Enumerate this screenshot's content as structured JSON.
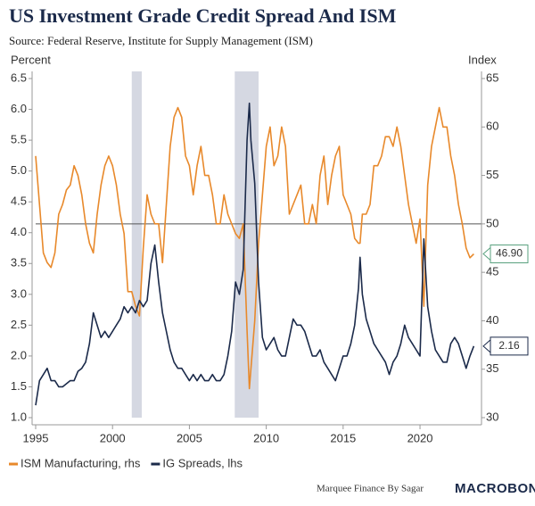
{
  "chart_data": {
    "type": "line",
    "title": "US Investment Grade Credit Spread And ISM",
    "subtitle": "Source: Federal Reserve, Institute for Supply Management (ISM)",
    "ylabel": "Percent",
    "y2label": "Index",
    "footer": "Marquee Finance By Sagar",
    "brand": "MACROBOND",
    "x": [
      1995,
      1995.25,
      1995.5,
      1995.75,
      1996,
      1996.25,
      1996.5,
      1996.75,
      1997,
      1997.25,
      1997.5,
      1997.75,
      1998,
      1998.25,
      1998.5,
      1998.75,
      1999,
      1999.25,
      1999.5,
      1999.75,
      2000,
      2000.25,
      2000.5,
      2000.75,
      2001,
      2001.25,
      2001.5,
      2001.75,
      2002,
      2002.25,
      2002.5,
      2002.75,
      2003,
      2003.25,
      2003.5,
      2003.75,
      2004,
      2004.25,
      2004.5,
      2004.75,
      2005,
      2005.25,
      2005.5,
      2005.75,
      2006,
      2006.25,
      2006.5,
      2006.75,
      2007,
      2007.25,
      2007.5,
      2007.75,
      2008,
      2008.25,
      2008.5,
      2008.75,
      2008.9,
      2009,
      2009.25,
      2009.5,
      2009.75,
      2010,
      2010.25,
      2010.5,
      2010.75,
      2011,
      2011.25,
      2011.5,
      2011.75,
      2012,
      2012.25,
      2012.5,
      2012.75,
      2013,
      2013.25,
      2013.5,
      2013.75,
      2014,
      2014.25,
      2014.5,
      2014.75,
      2015,
      2015.25,
      2015.5,
      2015.75,
      2016,
      2016.1,
      2016.25,
      2016.5,
      2016.75,
      2017,
      2017.25,
      2017.5,
      2017.75,
      2018,
      2018.25,
      2018.5,
      2018.75,
      2019,
      2019.25,
      2019.5,
      2019.75,
      2020,
      2020.25,
      2020.5,
      2020.75,
      2021,
      2021.25,
      2021.5,
      2021.75,
      2022,
      2022.25,
      2022.5,
      2022.75,
      2023,
      2023.25,
      2023.5
    ],
    "series": [
      {
        "name": "ISM Manufacturing, rhs",
        "color": "#e8892b",
        "axis": "y2",
        "end_label": "46.90",
        "label_border": "#5aa17f",
        "values": [
          57,
          52,
          47,
          46,
          45.5,
          47,
          51,
          52,
          53.5,
          54,
          56,
          55,
          53,
          50,
          48,
          47,
          51,
          54,
          56,
          57,
          56,
          54,
          51,
          49,
          43,
          43,
          41.5,
          40.5,
          47.5,
          53,
          51,
          50,
          50,
          46,
          52,
          58,
          61,
          62,
          61,
          57,
          56,
          53,
          56,
          58,
          55,
          55,
          53,
          50,
          50,
          53,
          51,
          50,
          49,
          48.5,
          50,
          39,
          33,
          35,
          40,
          48,
          53,
          58,
          60,
          56,
          57,
          60,
          58,
          51,
          52,
          53,
          54,
          50,
          50,
          52,
          50,
          55,
          57,
          52,
          55,
          57,
          58,
          53,
          52,
          51,
          48.5,
          48,
          48,
          51,
          51,
          52,
          56,
          56,
          57,
          59,
          59,
          58,
          60,
          58,
          55,
          52,
          50,
          48,
          50.5,
          41.5,
          54,
          58,
          60,
          62,
          60,
          60,
          57,
          55,
          52,
          50,
          47.5,
          46.5,
          46.9
        ]
      },
      {
        "name": "IG Spreads, lhs",
        "color": "#1b2a4a",
        "axis": "y",
        "end_label": "2.16",
        "label_border": "#1b2a4a",
        "values": [
          1.2,
          1.6,
          1.7,
          1.8,
          1.6,
          1.6,
          1.5,
          1.5,
          1.55,
          1.6,
          1.6,
          1.75,
          1.8,
          1.9,
          2.2,
          2.7,
          2.5,
          2.3,
          2.4,
          2.3,
          2.4,
          2.5,
          2.6,
          2.8,
          2.7,
          2.8,
          2.7,
          2.9,
          2.8,
          2.9,
          3.5,
          3.8,
          3.2,
          2.7,
          2.4,
          2.1,
          1.9,
          1.8,
          1.8,
          1.7,
          1.6,
          1.7,
          1.6,
          1.7,
          1.6,
          1.6,
          1.7,
          1.6,
          1.6,
          1.7,
          2.0,
          2.4,
          3.2,
          3.0,
          3.4,
          5.5,
          6.1,
          5.5,
          4.8,
          3.2,
          2.3,
          2.1,
          2.2,
          2.3,
          2.1,
          2.0,
          2.0,
          2.3,
          2.6,
          2.5,
          2.5,
          2.4,
          2.2,
          2.0,
          2.0,
          2.1,
          1.9,
          1.8,
          1.7,
          1.6,
          1.8,
          2.0,
          2.0,
          2.2,
          2.5,
          3.1,
          3.6,
          3.0,
          2.6,
          2.4,
          2.2,
          2.1,
          2.0,
          1.9,
          1.7,
          1.9,
          2.0,
          2.2,
          2.5,
          2.3,
          2.2,
          2.1,
          2.0,
          3.9,
          2.8,
          2.4,
          2.1,
          2.0,
          1.9,
          1.9,
          2.2,
          2.3,
          2.2,
          2.0,
          1.8,
          2.0,
          2.16
        ]
      }
    ],
    "recessions": [
      [
        2001.25,
        2001.9
      ],
      [
        2007.95,
        2009.5
      ]
    ],
    "reference_line": {
      "value": 50,
      "axis": "y2"
    },
    "xlim": [
      1995,
      2024
    ],
    "xticks": [
      1995,
      2000,
      2005,
      2010,
      2015,
      2020
    ],
    "ylim": [
      1,
      6.5
    ],
    "yticks": [
      {
        "value": 1,
        "label": "1.0"
      },
      1.5,
      {
        "value": 2,
        "label": "2.0"
      },
      2.5,
      {
        "value": 3,
        "label": "3.0"
      },
      3.5,
      {
        "value": 4,
        "label": "4.0"
      },
      4.5,
      {
        "value": 5,
        "label": "5.0"
      },
      5.5,
      {
        "value": 6,
        "label": "6.0"
      },
      6.5
    ],
    "y2lim": [
      30,
      65
    ],
    "y2ticks": [
      30,
      35,
      40,
      45,
      50,
      55,
      60,
      65
    ]
  }
}
